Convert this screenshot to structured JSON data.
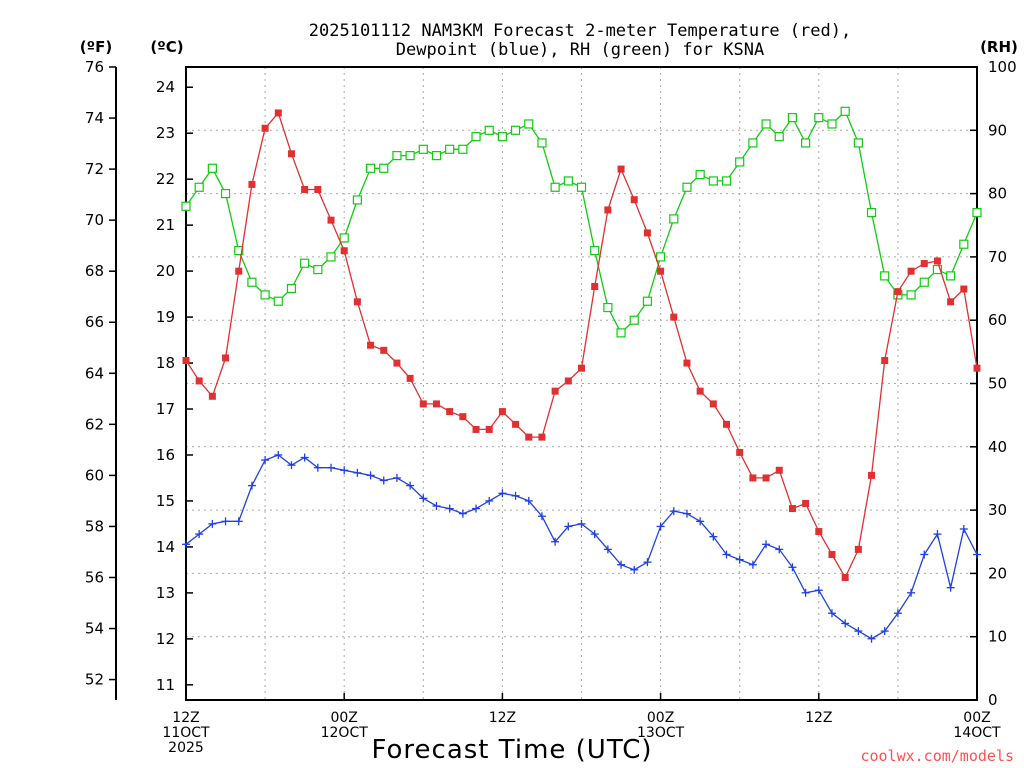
{
  "chart_data": {
    "type": "line",
    "title_line1": "2025101112 NAM3KM Forecast 2-meter Temperature (red),",
    "title_line2": "Dewpoint (blue), RH (green) for KSNA",
    "xlabel": "Forecast Time (UTC)",
    "credit": "coolwx.com/models",
    "unit_f": "(ºF)",
    "unit_c": "(ºC)",
    "unit_rh": "(RH)",
    "colors": {
      "temp": "#e03030",
      "dew": "#2040e0",
      "rh": "#10cc10",
      "grid": "#aaaaaa",
      "credit": "#ff5050"
    },
    "x_hours": [
      0,
      1,
      2,
      3,
      4,
      5,
      6,
      7,
      8,
      9,
      10,
      11,
      12,
      13,
      14,
      15,
      16,
      17,
      18,
      19,
      20,
      21,
      22,
      23,
      24,
      25,
      26,
      27,
      28,
      29,
      30,
      31,
      32,
      33,
      34,
      35,
      36,
      37,
      38,
      39,
      40,
      41,
      42,
      43,
      44,
      45,
      46,
      47,
      48,
      49,
      50,
      51,
      52,
      53,
      54,
      55,
      56,
      57,
      58,
      59,
      60
    ],
    "x_ticks": [
      {
        "hour": 0,
        "lines": [
          "12Z",
          "11OCT",
          "2025"
        ]
      },
      {
        "hour": 12,
        "lines": [
          "00Z",
          "12OCT"
        ]
      },
      {
        "hour": 24,
        "lines": [
          "12Z"
        ]
      },
      {
        "hour": 36,
        "lines": [
          "00Z",
          "13OCT"
        ]
      },
      {
        "hour": 48,
        "lines": [
          "12Z"
        ]
      },
      {
        "hour": 60,
        "lines": [
          "00Z",
          "14OCT"
        ]
      }
    ],
    "f_ticks": [
      "52",
      "54",
      "56",
      "58",
      "60",
      "62",
      "64",
      "66",
      "68",
      "70",
      "72",
      "74",
      "76"
    ],
    "c_ticks": [
      "11",
      "12",
      "13",
      "14",
      "15",
      "16",
      "17",
      "18",
      "19",
      "20",
      "21",
      "22",
      "23",
      "24"
    ],
    "rh_ticks": [
      "0",
      "10",
      "20",
      "30",
      "40",
      "50",
      "60",
      "70",
      "80",
      "90",
      "100"
    ],
    "f_range": [
      51.2,
      76.0
    ],
    "c_range": [
      10.67,
      24.44
    ],
    "rh_range": [
      0,
      100
    ],
    "series": [
      {
        "name": "Temperature (red)",
        "unit": "F",
        "values": [
          64.5,
          63.7,
          63.1,
          64.6,
          68.0,
          71.4,
          73.6,
          74.2,
          72.6,
          71.2,
          71.2,
          70.0,
          68.8,
          66.8,
          65.1,
          64.9,
          64.4,
          63.8,
          62.8,
          62.8,
          62.5,
          62.3,
          61.8,
          61.8,
          62.5,
          62.0,
          61.5,
          61.5,
          63.3,
          63.7,
          64.2,
          67.4,
          70.4,
          72.0,
          70.8,
          69.5,
          68.0,
          66.2,
          64.4,
          63.3,
          62.8,
          62.0,
          60.9,
          59.9,
          59.9,
          60.2,
          58.7,
          58.9,
          57.8,
          56.9,
          56.0,
          57.1,
          60.0,
          64.5,
          67.2,
          68.0,
          68.3,
          68.4,
          66.8,
          67.3,
          64.2
        ]
      },
      {
        "name": "Dewpoint (blue)",
        "unit": "F",
        "values": [
          57.3,
          57.7,
          58.1,
          58.2,
          58.2,
          59.6,
          60.6,
          60.8,
          60.4,
          60.7,
          60.3,
          60.3,
          60.2,
          60.1,
          60.0,
          59.8,
          59.9,
          59.6,
          59.1,
          58.8,
          58.7,
          58.5,
          58.7,
          59.0,
          59.3,
          59.2,
          59.0,
          58.4,
          57.4,
          58.0,
          58.1,
          57.7,
          57.1,
          56.5,
          56.3,
          56.6,
          58.0,
          58.6,
          58.5,
          58.2,
          57.6,
          56.9,
          56.7,
          56.5,
          57.3,
          57.1,
          56.4,
          55.4,
          55.5,
          54.6,
          54.2,
          53.9,
          53.6,
          53.9,
          54.6,
          55.4,
          56.9,
          57.7,
          55.6,
          57.9,
          56.9
        ]
      },
      {
        "name": "RH (green)",
        "unit": "%",
        "values": [
          78,
          81,
          84,
          80,
          71,
          66,
          64,
          63,
          65,
          69,
          68,
          70,
          73,
          79,
          84,
          84,
          86,
          86,
          87,
          86,
          87,
          87,
          89,
          90,
          89,
          90,
          91,
          88,
          81,
          82,
          81,
          71,
          62,
          58,
          60,
          63,
          70,
          76,
          81,
          83,
          82,
          82,
          85,
          88,
          91,
          89,
          92,
          88,
          92,
          91,
          93,
          88,
          77,
          67,
          64,
          64,
          66,
          68,
          67,
          72,
          77
        ]
      }
    ]
  }
}
